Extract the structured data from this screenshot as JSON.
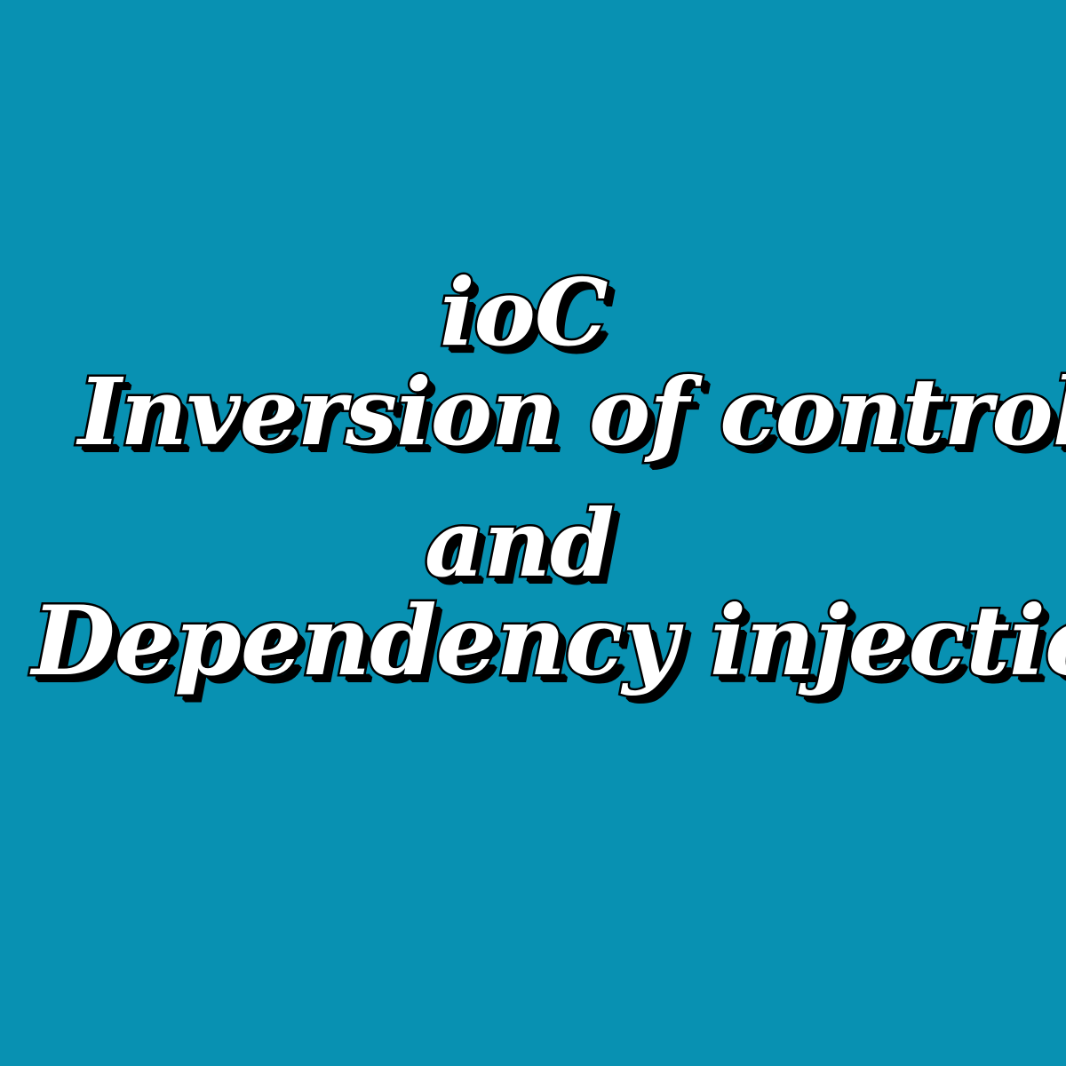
{
  "background_color": "#0891b2",
  "text_color": "#ffffff",
  "outline_color": "#000000",
  "title_lines": [
    "ioC",
    "Inversion of control",
    "and",
    "Dependency injection"
  ]
}
